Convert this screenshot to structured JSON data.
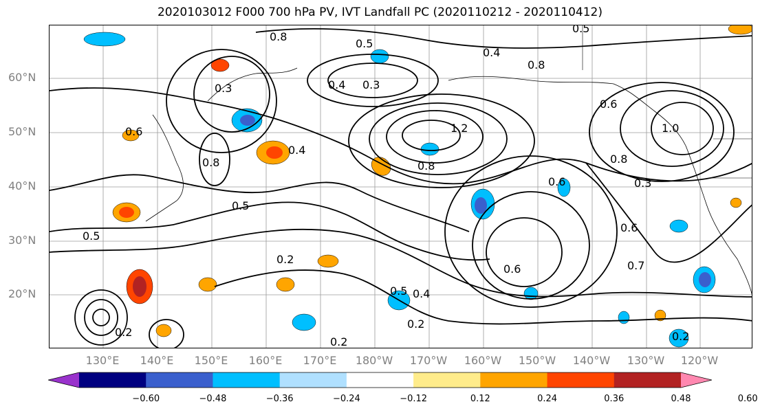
{
  "title": "2020103012 F000 700 hPa PV, IVT Landfall PC (2020110212 - 2020110412)",
  "map": {
    "projection": "equirectangular",
    "grid": true,
    "lat_labels": [
      "60°N",
      "50°N",
      "40°N",
      "30°N",
      "20°N"
    ],
    "lon_labels": [
      "130°E",
      "140°E",
      "150°E",
      "160°E",
      "170°E",
      "180°W",
      "170°W",
      "160°W",
      "150°W",
      "140°W",
      "130°W",
      "120°W"
    ],
    "contour_labels": [
      "0.5",
      "0.8",
      "0.4",
      "0.3",
      "0.6",
      "1.2",
      "0.2",
      "0.7",
      "1.0"
    ],
    "colors": {
      "neg_060": "#9932cc",
      "neg_048": "#000080",
      "neg_036": "#3a5fcd",
      "neg_024": "#00bfff",
      "neg_012": "#b0e0ff",
      "neutral": "#ffffff",
      "pos_012": "#ffec8b",
      "pos_024": "#ffa500",
      "pos_036": "#ff4500",
      "pos_048": "#b22222",
      "pos_060": "#ff88b0"
    }
  },
  "colorbar": {
    "ticks": [
      "−0.60",
      "−0.48",
      "−0.36",
      "−0.24",
      "−0.12",
      "0.12",
      "0.24",
      "0.36",
      "0.48",
      "0.60"
    ],
    "colors": [
      "#9932cc",
      "#000080",
      "#3a5fcd",
      "#00bfff",
      "#b0e0ff",
      "#ffffff",
      "#ffec8b",
      "#ffa500",
      "#ff4500",
      "#b22222",
      "#ff88b0"
    ]
  }
}
